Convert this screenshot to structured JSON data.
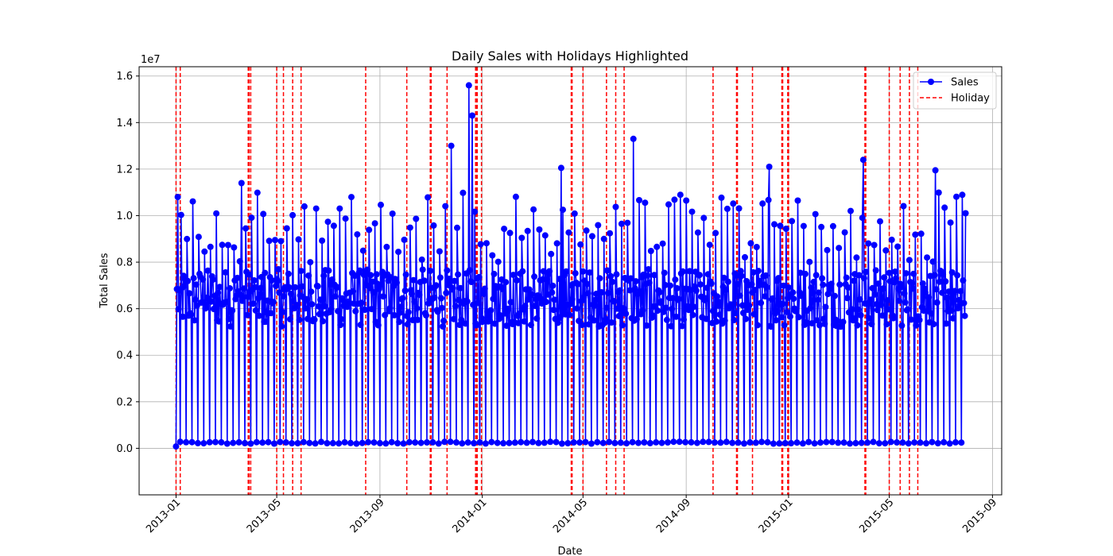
{
  "chart_data": {
    "type": "line",
    "title": "Daily Sales with Holidays Highlighted",
    "xlabel": "Date",
    "ylabel": "Total Sales",
    "y_multiplier": "1e7",
    "ylim": [
      -2000000,
      16400000
    ],
    "xlim": [
      "2012-11-18",
      "2015-09-12"
    ],
    "grid": true,
    "legend_position": "top-right",
    "colors": {
      "sales": "#0000ff",
      "holiday": "#ff0000"
    },
    "x_ticks": [
      "2013-01",
      "2013-05",
      "2013-09",
      "2014-01",
      "2014-05",
      "2014-09",
      "2015-01",
      "2015-05",
      "2015-09"
    ],
    "y_ticks": [
      "0.0",
      "0.2",
      "0.4",
      "0.6",
      "0.8",
      "1.0",
      "1.2",
      "1.4",
      "1.6"
    ],
    "series": [
      {
        "name": "Sales",
        "x_start": "2013-01-01",
        "x_end": "2015-07-31",
        "frequency": "daily",
        "weekly_low_value": 200000,
        "typical_peak_range": [
          5500000,
          11000000
        ],
        "notable_peaks": [
          {
            "x": "2013-01-03",
            "y": 10800000
          },
          {
            "x": "2013-03-20",
            "y": 11400000
          },
          {
            "x": "2013-11-25",
            "y": 13000000
          },
          {
            "x": "2013-12-16",
            "y": 15600000
          },
          {
            "x": "2013-12-20",
            "y": 14300000
          },
          {
            "x": "2014-04-05",
            "y": 12050000
          },
          {
            "x": "2014-06-30",
            "y": 13300000
          },
          {
            "x": "2014-12-09",
            "y": 12100000
          },
          {
            "x": "2015-03-31",
            "y": 12400000
          },
          {
            "x": "2015-06-25",
            "y": 11950000
          },
          {
            "x": "2015-07-31",
            "y": 10100000
          }
        ]
      },
      {
        "name": "Holiday",
        "dates": [
          "2013-01-01",
          "2013-01-06",
          "2013-03-28",
          "2013-03-29",
          "2013-03-31",
          "2013-05-01",
          "2013-05-09",
          "2013-05-20",
          "2013-05-30",
          "2013-08-15",
          "2013-10-03",
          "2013-10-31",
          "2013-11-01",
          "2013-11-20",
          "2013-12-24",
          "2013-12-25",
          "2013-12-26",
          "2013-12-31",
          "2014-04-17",
          "2014-04-18",
          "2014-05-01",
          "2014-05-29",
          "2014-06-09",
          "2014-06-19",
          "2014-10-03",
          "2014-10-31",
          "2014-11-01",
          "2014-11-19",
          "2014-12-24",
          "2014-12-25",
          "2014-12-31",
          "2015-01-01",
          "2015-04-02",
          "2015-04-03",
          "2015-05-01",
          "2015-05-14",
          "2015-05-25",
          "2015-06-04"
        ]
      }
    ]
  }
}
